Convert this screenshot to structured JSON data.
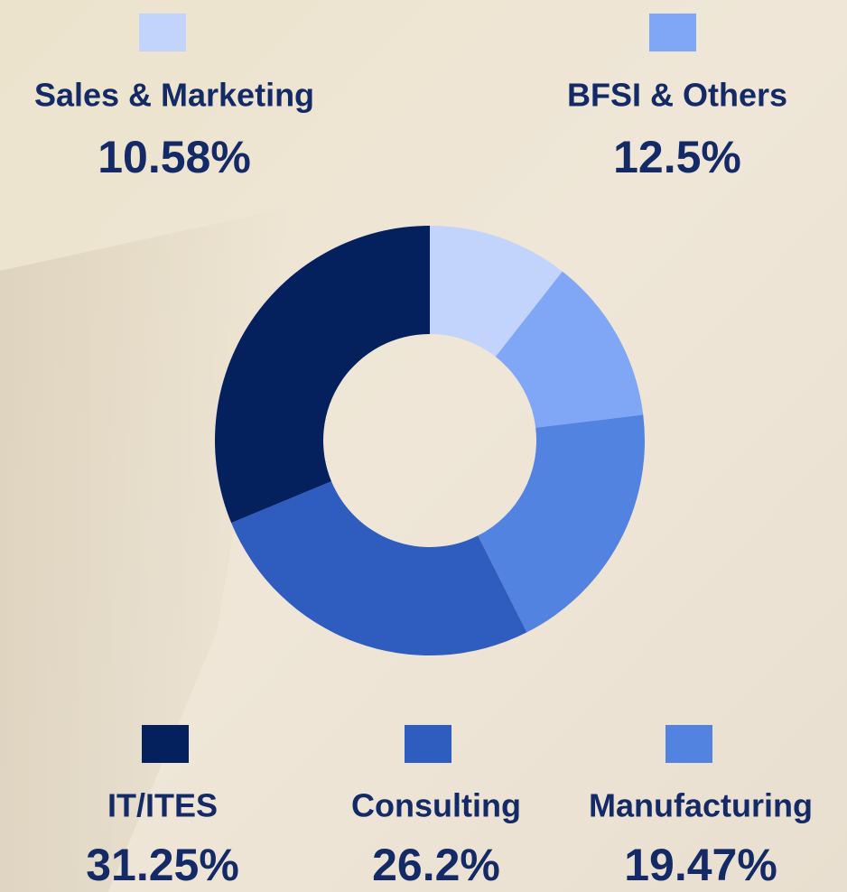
{
  "chart_data": {
    "type": "donut",
    "categories": [
      "Sales & Marketing",
      "BFSI & Others",
      "Manufacturing",
      "Consulting",
      "IT/ITES"
    ],
    "values": [
      10.58,
      12.5,
      19.47,
      26.2,
      31.25
    ],
    "value_labels": [
      "10.58%",
      "12.5%",
      "19.47%",
      "26.2%",
      "31.25%"
    ],
    "colors": [
      "#c2d4fc",
      "#80a7f6",
      "#5283e1",
      "#2e5cbf",
      "#04215e"
    ]
  }
}
